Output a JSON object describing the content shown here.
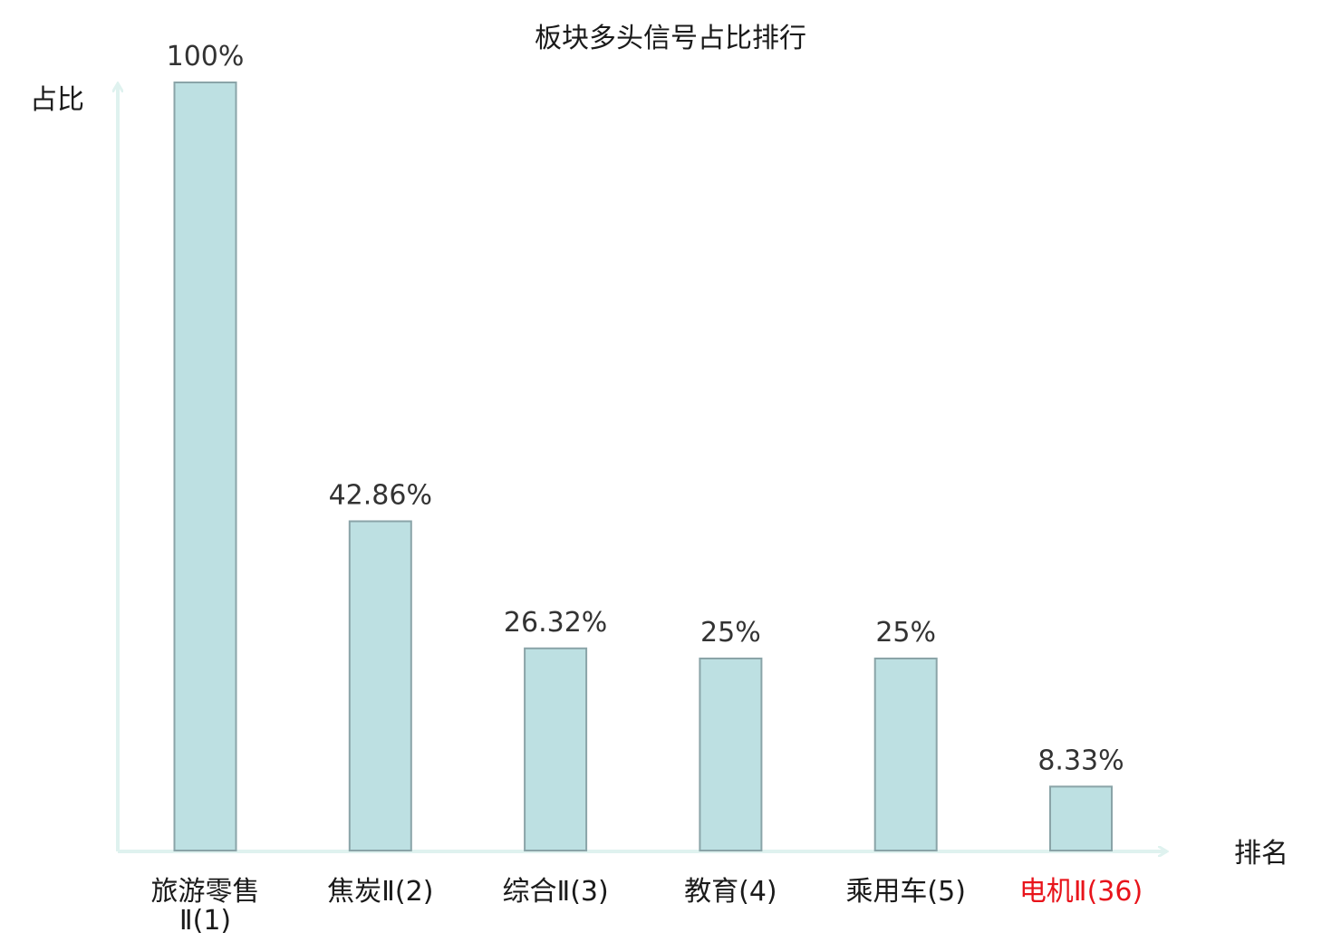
{
  "chart_data": {
    "type": "bar",
    "title": "板块多头信号占比排行",
    "ylabel": "占比",
    "xlabel": "排名",
    "categories": [
      [
        "旅游零售",
        "Ⅱ(1)"
      ],
      [
        "焦炭Ⅱ(2)"
      ],
      [
        "综合Ⅱ(3)"
      ],
      [
        "教育(4)"
      ],
      [
        "乘用车(5)"
      ],
      [
        "电机Ⅱ(36)"
      ]
    ],
    "values": [
      100,
      42.86,
      26.32,
      25,
      25,
      8.33
    ],
    "value_labels": [
      "100%",
      "42.86%",
      "26.32%",
      "25%",
      "25%",
      "8.33%"
    ],
    "highlight_index": 5,
    "ylim": [
      0,
      100
    ],
    "grid": false,
    "colors": {
      "bar_fill": "#bde0e2",
      "bar_stroke": "#8aa4a8",
      "axis": "#dff2ef",
      "highlight_text": "#e8141b"
    }
  }
}
